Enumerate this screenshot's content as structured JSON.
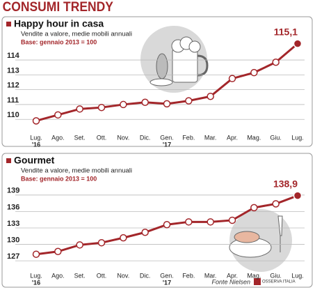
{
  "title": "CONSUMI TRENDY",
  "source": "Fonte Nielsen",
  "logo": "OSSERVA ITALIA",
  "chart_data": [
    {
      "type": "line",
      "title": "Happy hour in casa",
      "subtitle": "Vendite a valore, medie mobili annuali",
      "base": "Base: gennaio 2013 = 100",
      "categories": [
        "Lug.",
        "Ago.",
        "Set.",
        "Ott.",
        "Nov.",
        "Dic.",
        "Gen.",
        "Feb.",
        "Mar.",
        "Apr.",
        "Mag.",
        "Giu.",
        "Lug."
      ],
      "x_year_labels": [
        "'16",
        null,
        null,
        null,
        null,
        null,
        "'17",
        null,
        null,
        null,
        null,
        null,
        null
      ],
      "values": [
        109.9,
        110.3,
        110.7,
        110.8,
        111.0,
        111.15,
        111.05,
        111.25,
        111.55,
        112.75,
        113.15,
        113.85,
        115.1
      ],
      "value_labels": [
        null,
        null,
        null,
        null,
        null,
        null,
        null,
        null,
        null,
        null,
        null,
        null,
        "115,1"
      ],
      "color": "#a3262a",
      "ylim": [
        109.4,
        115.6
      ],
      "yticks": [
        110,
        111,
        112,
        113,
        114
      ],
      "grid": true
    },
    {
      "type": "line",
      "title": "Gourmet",
      "subtitle": "Vendite a valore, medie mobili annuali",
      "base": "Base: gennaio 2013 = 100",
      "categories": [
        "Lug.",
        "Ago.",
        "Set.",
        "Ott.",
        "Nov.",
        "Dic.",
        "Gen.",
        "Feb.",
        "Mar.",
        "Apr.",
        "Mag.",
        "Giu.",
        "Lug."
      ],
      "x_year_labels": [
        "'16",
        null,
        null,
        null,
        null,
        null,
        "'17",
        null,
        null,
        null,
        null,
        null,
        null
      ],
      "values": [
        128.2,
        128.7,
        129.9,
        130.3,
        131.2,
        132.2,
        133.6,
        134.1,
        134.1,
        134.4,
        136.7,
        137.4,
        138.9
      ],
      "value_labels": [
        null,
        null,
        null,
        null,
        null,
        null,
        null,
        null,
        null,
        null,
        null,
        null,
        "138,9"
      ],
      "color": "#a3262a",
      "ylim": [
        126,
        140.5
      ],
      "yticks": [
        127,
        130,
        133,
        136,
        139
      ],
      "grid": true
    }
  ]
}
